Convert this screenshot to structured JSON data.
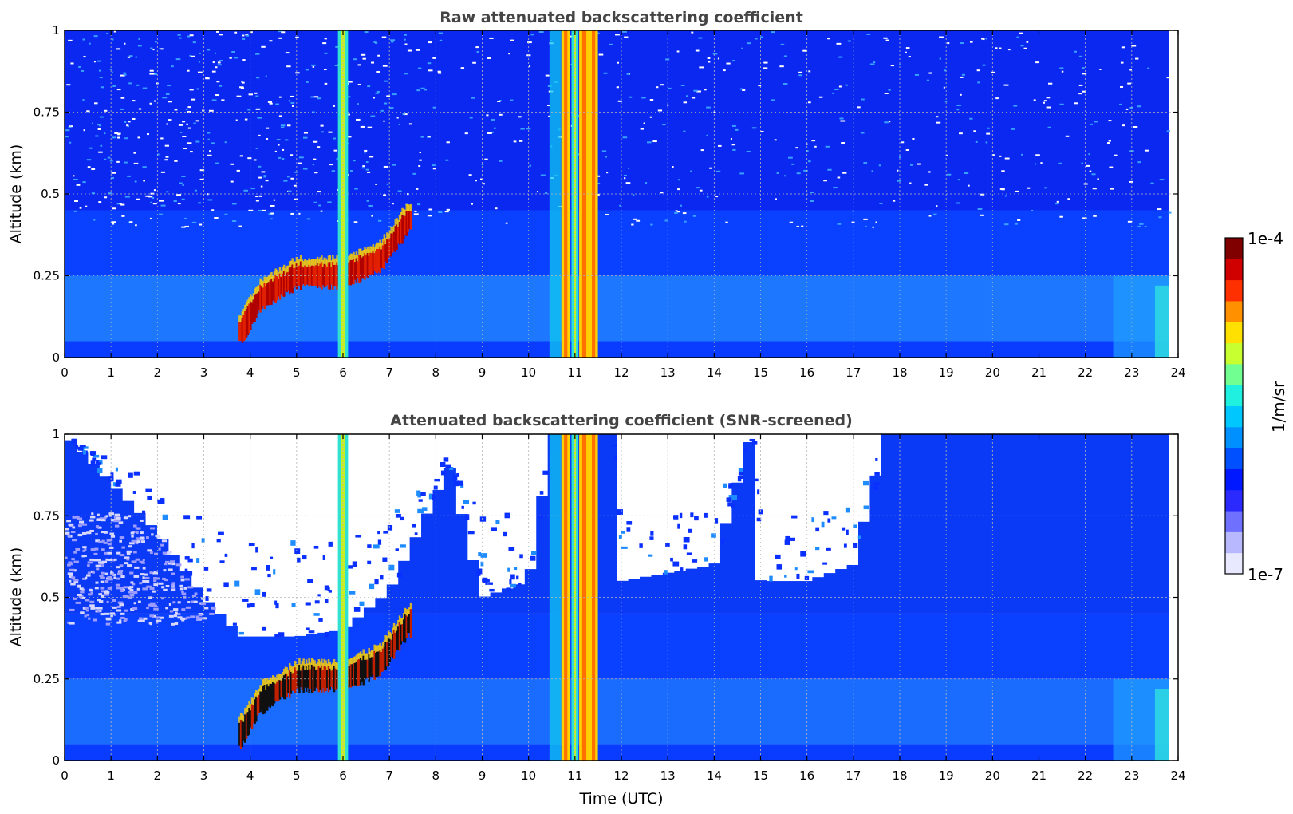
{
  "chart_data": [
    {
      "type": "heatmap",
      "title": "Raw attenuated backscattering coefficient",
      "xlabel": "",
      "ylabel": "Altitude (km)",
      "xlim": [
        0,
        24
      ],
      "ylim": [
        0,
        1
      ],
      "xticks": [
        "0",
        "1",
        "2",
        "3",
        "4",
        "5",
        "6",
        "7",
        "8",
        "9",
        "10",
        "11",
        "12",
        "13",
        "14",
        "15",
        "16",
        "17",
        "18",
        "19",
        "20",
        "21",
        "22",
        "23",
        "24"
      ],
      "yticks": [
        "0",
        "0.25",
        "0.5",
        "0.75",
        "1"
      ],
      "ytick_values": [
        0,
        0.25,
        0.5,
        0.75,
        1
      ],
      "grid": true,
      "bright_columns": [
        {
          "x": 6.0,
          "width": 0.15,
          "level": "high"
        },
        {
          "x": 10.8,
          "width": 0.12,
          "level": "very-high"
        },
        {
          "x": 11.0,
          "width": 0.08,
          "level": "high"
        },
        {
          "x": 11.2,
          "width": 0.15,
          "level": "very-high"
        },
        {
          "x": 11.4,
          "width": 0.12,
          "level": "very-high"
        }
      ],
      "aerosol_layer": [
        {
          "x": 3.8,
          "y": 0.08
        },
        {
          "x": 4.2,
          "y": 0.18
        },
        {
          "x": 5.0,
          "y": 0.25
        },
        {
          "x": 6.0,
          "y": 0.25
        },
        {
          "x": 6.8,
          "y": 0.3
        },
        {
          "x": 7.4,
          "y": 0.42
        }
      ]
    },
    {
      "type": "heatmap",
      "title": "Attenuated backscattering coefficient (SNR-screened)",
      "xlabel": "Time (UTC)",
      "ylabel": "Altitude (km)",
      "xlim": [
        0,
        24
      ],
      "ylim": [
        0,
        1
      ],
      "xticks": [
        "0",
        "1",
        "2",
        "3",
        "4",
        "5",
        "6",
        "7",
        "8",
        "9",
        "10",
        "11",
        "12",
        "13",
        "14",
        "15",
        "16",
        "17",
        "18",
        "19",
        "20",
        "21",
        "22",
        "23",
        "24"
      ],
      "yticks": [
        "0",
        "0.25",
        "0.5",
        "0.75",
        "1"
      ],
      "ytick_values": [
        0,
        0.25,
        0.5,
        0.75,
        1
      ],
      "grid": true,
      "screened_top": [
        {
          "x": 0,
          "y": 1.0
        },
        {
          "x": 2.0,
          "y": 0.7
        },
        {
          "x": 3.0,
          "y": 0.5
        },
        {
          "x": 3.8,
          "y": 0.38
        },
        {
          "x": 5.0,
          "y": 0.38
        },
        {
          "x": 6.0,
          "y": 0.4
        },
        {
          "x": 7.0,
          "y": 0.52
        },
        {
          "x": 8.3,
          "y": 0.9
        },
        {
          "x": 9.0,
          "y": 0.5
        },
        {
          "x": 10.0,
          "y": 0.55
        },
        {
          "x": 10.5,
          "y": 1.0
        },
        {
          "x": 11.8,
          "y": 1.0
        },
        {
          "x": 12.0,
          "y": 0.55
        },
        {
          "x": 14.0,
          "y": 0.6
        },
        {
          "x": 14.8,
          "y": 1.0
        },
        {
          "x": 15.0,
          "y": 0.55
        },
        {
          "x": 16.0,
          "y": 0.55
        },
        {
          "x": 17.0,
          "y": 0.6
        },
        {
          "x": 17.7,
          "y": 1.0
        },
        {
          "x": 24,
          "y": 1.0
        }
      ]
    }
  ],
  "colorbar": {
    "label": "1/m/sr",
    "max_label": "1e-4",
    "min_label": "1e-7",
    "colors": [
      "#e8e8ff",
      "#b8b8ff",
      "#7070ff",
      "#2a2aff",
      "#0018ff",
      "#0050ff",
      "#0090ff",
      "#00c8ff",
      "#20f0e0",
      "#70ff90",
      "#c8ff30",
      "#ffe000",
      "#ff9000",
      "#ff3000",
      "#d00000",
      "#800000"
    ]
  }
}
